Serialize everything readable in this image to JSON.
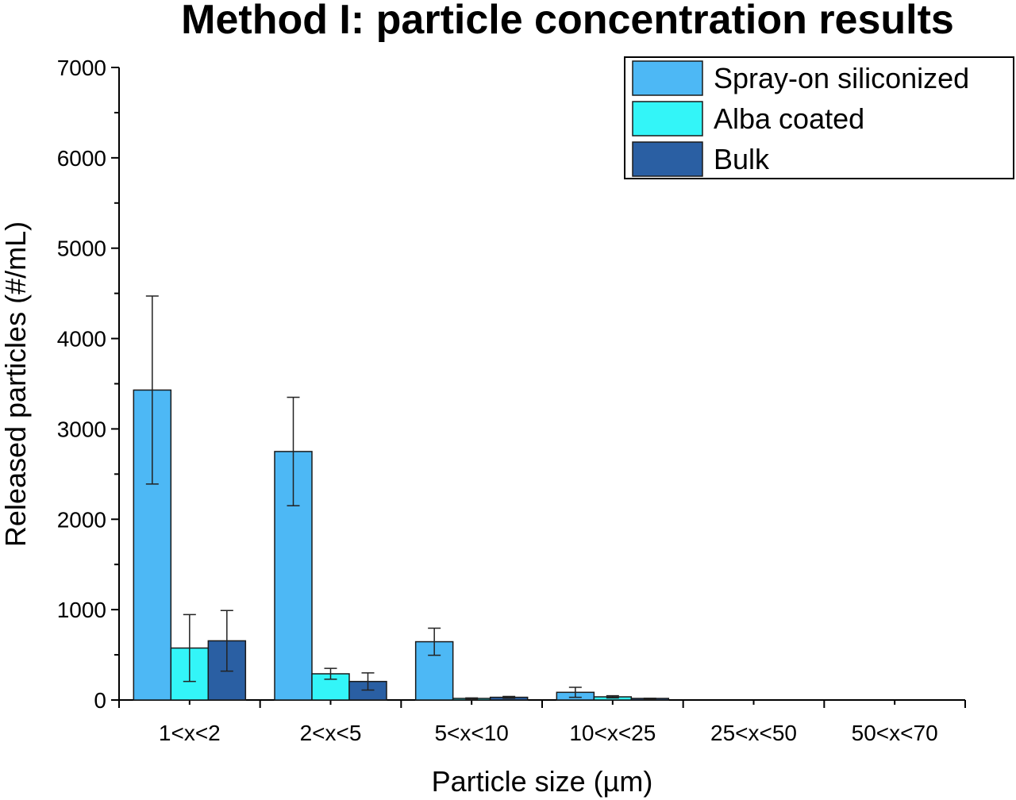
{
  "chart_data": {
    "type": "bar",
    "title": "Method I: particle concentration results",
    "xlabel": "Particle size (µm)",
    "ylabel": "Released particles (#/mL)",
    "ylim": [
      0,
      7000
    ],
    "yticks": [
      0,
      1000,
      2000,
      3000,
      4000,
      5000,
      6000,
      7000
    ],
    "categories": [
      "1<x<2",
      "2<x<5",
      "5<x<10",
      "10<x<25",
      "25<x<50",
      "50<x<70"
    ],
    "series": [
      {
        "name": "Spray-on siliconized",
        "color": "#4db8f5",
        "values": [
          3430,
          2750,
          645,
          85,
          0,
          0
        ],
        "errors": [
          1040,
          600,
          150,
          55,
          0,
          0
        ]
      },
      {
        "name": "Alba coated",
        "color": "#33f5f8",
        "values": [
          575,
          290,
          15,
          35,
          0,
          0
        ],
        "errors": [
          370,
          60,
          8,
          12,
          0,
          0
        ]
      },
      {
        "name": "Bulk",
        "color": "#2a5fa3",
        "values": [
          655,
          205,
          30,
          15,
          0,
          0
        ],
        "errors": [
          335,
          95,
          10,
          5,
          0,
          0
        ]
      }
    ],
    "grid": false,
    "legend_position": "top-right"
  }
}
